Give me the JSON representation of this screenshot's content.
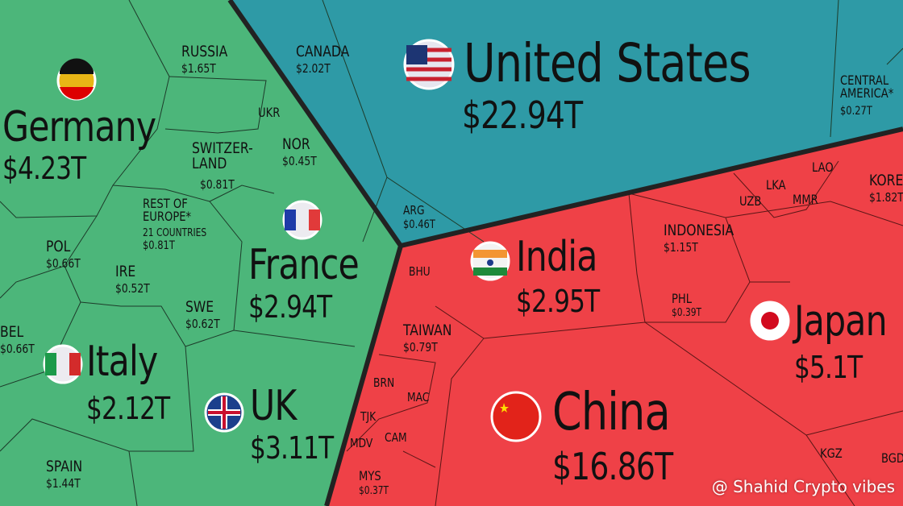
{
  "europe": [
    {
      "label": "Germany",
      "value": "$4.23T"
    },
    {
      "label": "France",
      "value": "$2.94T"
    },
    {
      "label": "Italy",
      "value": "$2.12T"
    },
    {
      "label": "UK",
      "value": "$3.11T"
    },
    {
      "label": "RUSSIA",
      "value": "$1.65T"
    },
    {
      "label": "UKR"
    },
    {
      "label": "NOR",
      "value": "$0.45T"
    },
    {
      "label": "SWITZER-\nLAND",
      "value": "$0.81T"
    },
    {
      "label": "REST OF\nEUROPE*",
      "note": "21 COUNTRIES",
      "value": "$0.81T"
    },
    {
      "label": "POL",
      "value": "$0.66T"
    },
    {
      "label": "IRE",
      "value": "$0.52T"
    },
    {
      "label": "SWE",
      "value": "$0.62T"
    },
    {
      "label": "BEL",
      "value": "$0.66T"
    },
    {
      "label": "SPAIN",
      "value": "$1.44T"
    }
  ],
  "americas": [
    {
      "label": "United States",
      "value": "$22.94T"
    },
    {
      "label": "CANADA",
      "value": "$2.02T"
    },
    {
      "label": "CENTRAL\nAMERICA*",
      "value": "$0.27T"
    },
    {
      "label": "ARG",
      "value": "$0.46T"
    }
  ],
  "asia": [
    {
      "label": "China",
      "value": "$16.86T"
    },
    {
      "label": "India",
      "value": "$2.95T"
    },
    {
      "label": "Japan",
      "value": "$5.1T"
    },
    {
      "label": "INDONESIA",
      "value": "$1.15T"
    },
    {
      "label": "PHL",
      "value": "$0.39T"
    },
    {
      "label": "TAIWAN",
      "value": "$0.79T"
    },
    {
      "label": "BHU"
    },
    {
      "label": "BRN"
    },
    {
      "label": "MAC"
    },
    {
      "label": "TJK"
    },
    {
      "label": "CAM"
    },
    {
      "label": "MDV"
    },
    {
      "label": "MYS",
      "value": "$0.37T"
    },
    {
      "label": "UZB"
    },
    {
      "label": "LKA"
    },
    {
      "label": "MMR"
    },
    {
      "label": "LAO"
    },
    {
      "label": "KOREA",
      "value": "$1.82T"
    },
    {
      "label": "KGZ"
    },
    {
      "label": "BGD"
    }
  ],
  "watermark": "@ Shahid Crypto vibes"
}
